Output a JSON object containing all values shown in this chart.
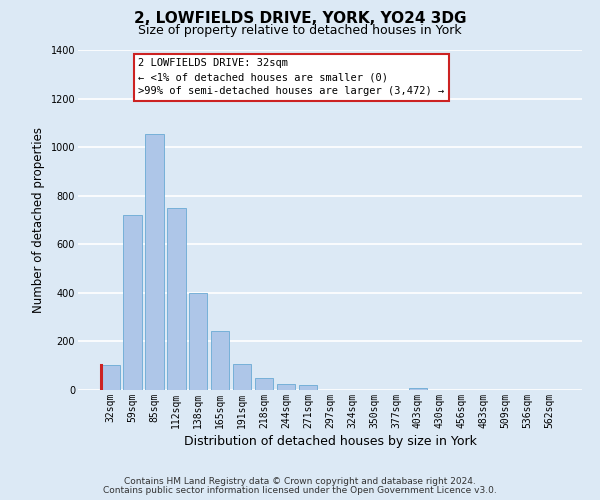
{
  "title": "2, LOWFIELDS DRIVE, YORK, YO24 3DG",
  "subtitle": "Size of property relative to detached houses in York",
  "xlabel": "Distribution of detached houses by size in York",
  "ylabel": "Number of detached properties",
  "categories": [
    "32sqm",
    "59sqm",
    "85sqm",
    "112sqm",
    "138sqm",
    "165sqm",
    "191sqm",
    "218sqm",
    "244sqm",
    "271sqm",
    "297sqm",
    "324sqm",
    "350sqm",
    "377sqm",
    "403sqm",
    "430sqm",
    "456sqm",
    "483sqm",
    "509sqm",
    "536sqm",
    "562sqm"
  ],
  "values": [
    105,
    720,
    1055,
    748,
    400,
    243,
    108,
    48,
    25,
    22,
    0,
    0,
    0,
    0,
    10,
    0,
    0,
    0,
    0,
    0,
    0
  ],
  "bar_color": "#aec6e8",
  "bar_edge_color": "#6aaad4",
  "highlight_color": "#cc2222",
  "ylim": [
    0,
    1400
  ],
  "yticks": [
    0,
    200,
    400,
    600,
    800,
    1000,
    1200,
    1400
  ],
  "annotation_title": "2 LOWFIELDS DRIVE: 32sqm",
  "annotation_line1": "← <1% of detached houses are smaller (0)",
  "annotation_line2": ">99% of semi-detached houses are larger (3,472) →",
  "annotation_box_facecolor": "#ffffff",
  "annotation_border_color": "#cc2222",
  "footer_line1": "Contains HM Land Registry data © Crown copyright and database right 2024.",
  "footer_line2": "Contains public sector information licensed under the Open Government Licence v3.0.",
  "bg_color": "#dce9f5",
  "plot_bg_color": "#dce9f5",
  "grid_color": "#ffffff",
  "title_fontsize": 11,
  "subtitle_fontsize": 9,
  "ylabel_fontsize": 8.5,
  "xlabel_fontsize": 9,
  "tick_fontsize": 7,
  "footer_fontsize": 6.5,
  "ann_fontsize": 7.5
}
